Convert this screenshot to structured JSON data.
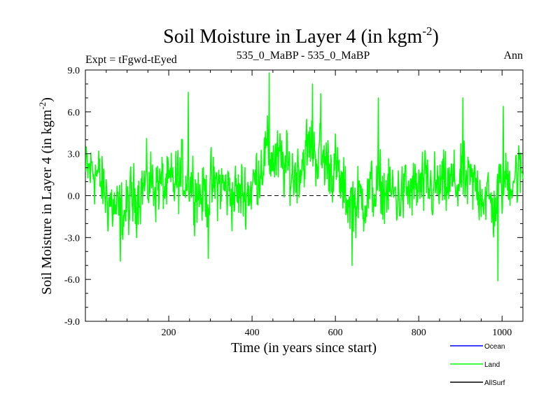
{
  "chart_data": {
    "type": "line",
    "title_main": "Soil Moisture in Layer 4 (in kgm",
    "title_sup": "-2",
    "title_close": ")",
    "header_left": "Expt = tFgwd-tEyed",
    "header_center": "535_0_MaBP - 535_0_MaBP",
    "header_right": "Ann",
    "xlabel": "Time (in years since start)",
    "ylabel_main": "Soil Moisture in Layer 4 (in kgm",
    "ylabel_sup": "-2",
    "ylabel_close": ")",
    "xlim": [
      0,
      1050
    ],
    "ylim": [
      -9,
      9
    ],
    "x_ticks": [
      200,
      400,
      600,
      800,
      1000
    ],
    "x_tick_labels": [
      "200",
      "400",
      "600",
      "800",
      "1000"
    ],
    "y_ticks": [
      -9,
      -6,
      -3,
      0,
      3,
      6,
      9
    ],
    "y_tick_labels": [
      "-9.0",
      "-6.0",
      "-3.0",
      "0.0",
      "3.0",
      "6.0",
      "9.0"
    ],
    "reference_line": 0,
    "legend": [
      {
        "name": "Ocean",
        "color": "#0000ff"
      },
      {
        "name": "Land",
        "color": "#00ff00"
      },
      {
        "name": "AllSurf",
        "color": "#000000"
      }
    ],
    "series": [
      {
        "name": "Land",
        "color": "#00ff00",
        "x_start": 1,
        "x_step": 1,
        "count": 1050,
        "anchors": [
          [
            0,
            1.5
          ],
          [
            20,
            2.0
          ],
          [
            50,
            0.0
          ],
          [
            80,
            -1.5
          ],
          [
            100,
            -1.0
          ],
          [
            130,
            0.5
          ],
          [
            160,
            1.0
          ],
          [
            200,
            0.5
          ],
          [
            240,
            1.5
          ],
          [
            280,
            0.0
          ],
          [
            320,
            0.8
          ],
          [
            360,
            0.0
          ],
          [
            400,
            0.5
          ],
          [
            430,
            3.0
          ],
          [
            460,
            2.5
          ],
          [
            500,
            1.5
          ],
          [
            540,
            3.5
          ],
          [
            570,
            2.5
          ],
          [
            600,
            2.0
          ],
          [
            620,
            0.0
          ],
          [
            650,
            -0.5
          ],
          [
            700,
            0.5
          ],
          [
            750,
            0.0
          ],
          [
            800,
            0.5
          ],
          [
            850,
            0.5
          ],
          [
            900,
            1.0
          ],
          [
            950,
            0.5
          ],
          [
            980,
            -1.0
          ],
          [
            1000,
            1.0
          ],
          [
            1030,
            1.5
          ],
          [
            1050,
            1.5
          ]
        ],
        "amplitude": 1.7,
        "extremes": [
          [
            84,
            -4.7
          ],
          [
            247,
            7.4
          ],
          [
            295,
            -4.5
          ],
          [
            441,
            8.8
          ],
          [
            545,
            8.0
          ],
          [
            565,
            7.3
          ],
          [
            640,
            -5.0
          ],
          [
            703,
            7.0
          ],
          [
            906,
            7.0
          ],
          [
            990,
            -6.1
          ],
          [
            1003,
            6.4
          ]
        ]
      }
    ]
  }
}
